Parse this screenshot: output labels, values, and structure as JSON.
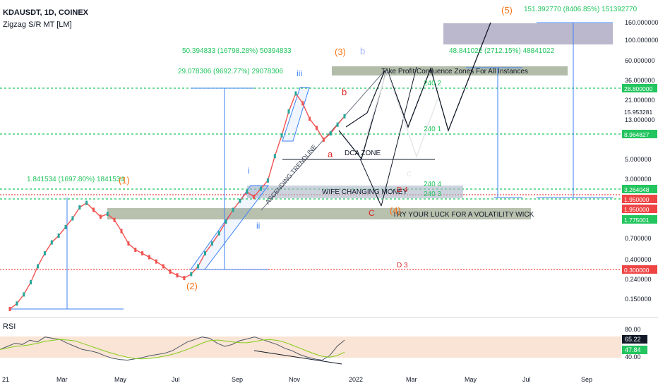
{
  "header": {
    "symbol_line": "KDAUSDT, 1D, COINEX",
    "indicator_line": "Zigzag S/R MT [LM]"
  },
  "colors": {
    "candle": "#ef5350",
    "candle_up": "#26a69a",
    "support_line": "#22c55e",
    "resistance_line": "#ef4444",
    "wave_orange": "#f97316",
    "wave_blue": "#3b82f6",
    "projection": "#111827",
    "zone_fill": "#9aa58c",
    "purple_zone": "#b4b0c8",
    "rsi_band": "#f7ddca",
    "rsi_line": "#4b5563",
    "rsi_ma": "#84cc16",
    "green_label": "#22c55e",
    "red_label": "#dc2626",
    "dark_label": "#111827"
  },
  "chart_data": [
    {
      "type": "line",
      "title": "KDAUSDT, 1D, COINEX",
      "scale": "log",
      "y_ticks": [
        "160.000000",
        "100.000000",
        "60.000000",
        "36.000000",
        "21.000000",
        "13.000000",
        "5.000000",
        "3.000000",
        "1.950000",
        "0.700000",
        "0.400000",
        "0.240000",
        "0.150000"
      ],
      "x_ticks": [
        "21",
        "Mar",
        "May",
        "Jul",
        "Sep",
        "Nov",
        "2022",
        "Mar",
        "May",
        "Jul",
        "Sep"
      ],
      "price_tags": [
        {
          "label": "28.800000",
          "kind": "green"
        },
        {
          "label": "15.953281",
          "kind": "plain"
        },
        {
          "label": "8.964827",
          "kind": "green"
        },
        {
          "label": "3.264048",
          "kind": "green"
        },
        {
          "label": "1.950000",
          "kind": "red"
        },
        {
          "label": "1.950000",
          "kind": "red"
        },
        {
          "label": "1.775001",
          "kind": "green"
        },
        {
          "label": "0.300000",
          "kind": "red"
        }
      ],
      "series": [
        {
          "values": [
            0.14,
            0.16,
            0.2,
            0.27,
            0.4,
            0.55,
            0.72,
            0.85,
            1.05,
            1.3,
            1.7,
            1.9,
            1.6,
            1.35,
            1.45,
            1.25,
            0.95,
            0.7,
            0.6,
            0.55,
            0.5,
            0.45,
            0.4,
            0.35,
            0.32,
            0.3,
            0.33,
            0.4,
            0.55,
            0.7,
            0.9,
            1.2,
            1.6,
            2.0,
            2.5,
            2.2,
            2.7,
            3.3,
            6.0,
            10.0,
            18.0,
            28.0,
            22.0,
            15.0,
            12.0,
            9.0,
            10.5,
            13.0,
            16.0
          ]
        }
      ],
      "x": [
        "Jan",
        "Jan",
        "Feb",
        "Feb",
        "Mar",
        "Mar",
        "Mar",
        "Apr",
        "Apr",
        "Apr",
        "May",
        "May",
        "May",
        "May",
        "Jun",
        "Jun",
        "Jun",
        "Jun",
        "Jul",
        "Jul",
        "Jul",
        "Jul",
        "Jul",
        "Aug",
        "Aug",
        "Aug",
        "Aug",
        "Aug",
        "Sep",
        "Sep",
        "Sep",
        "Sep",
        "Sep",
        "Sep",
        "Oct",
        "Oct",
        "Oct",
        "Oct",
        "Oct",
        "Oct",
        "Nov",
        "Nov",
        "Nov",
        "Nov",
        "Nov",
        "Dec",
        "Dec",
        "Dec",
        "Dec"
      ],
      "annotations": [
        "1.841534 (1697.80%) 1841534",
        "29.078306 (9692.77%) 29078306",
        "50.394833 (16798.28%) 50394833",
        "48.841022 (2712.15%) 48841022",
        "151.392770 (8406.85%) 151392770",
        "Take Profit/Confluence Zones For All Instances",
        "DCA ZONE",
        "WIFE CHANGING MONEY",
        "TRY YOUR LUCK FOR A VOLATILITY WICK",
        "ASCENDING TRENDLINE",
        "240 2",
        "240 1",
        "240 4",
        "240 3",
        "D 4",
        "D 3",
        "(1)",
        "(2)",
        "(3)",
        "(4)",
        "(5)",
        "i",
        "ii",
        "iii",
        "b",
        "a",
        "c",
        "C",
        "b"
      ]
    },
    {
      "type": "line",
      "title": "RSI",
      "y_ticks": [
        "80.00",
        "40.00"
      ],
      "current": {
        "rsi": "65.22",
        "ma": "47.84"
      },
      "series": [
        {
          "values": [
            50,
            55,
            60,
            58,
            65,
            62,
            70,
            68,
            66,
            60,
            55,
            50,
            48,
            45,
            40,
            36,
            34,
            33,
            35,
            37,
            40,
            42,
            44,
            48,
            55,
            62,
            66,
            70,
            68,
            60,
            55,
            58,
            64,
            67,
            70,
            66,
            62,
            58,
            52,
            48,
            42,
            38,
            35,
            33,
            40,
            55,
            65
          ]
        }
      ]
    }
  ]
}
